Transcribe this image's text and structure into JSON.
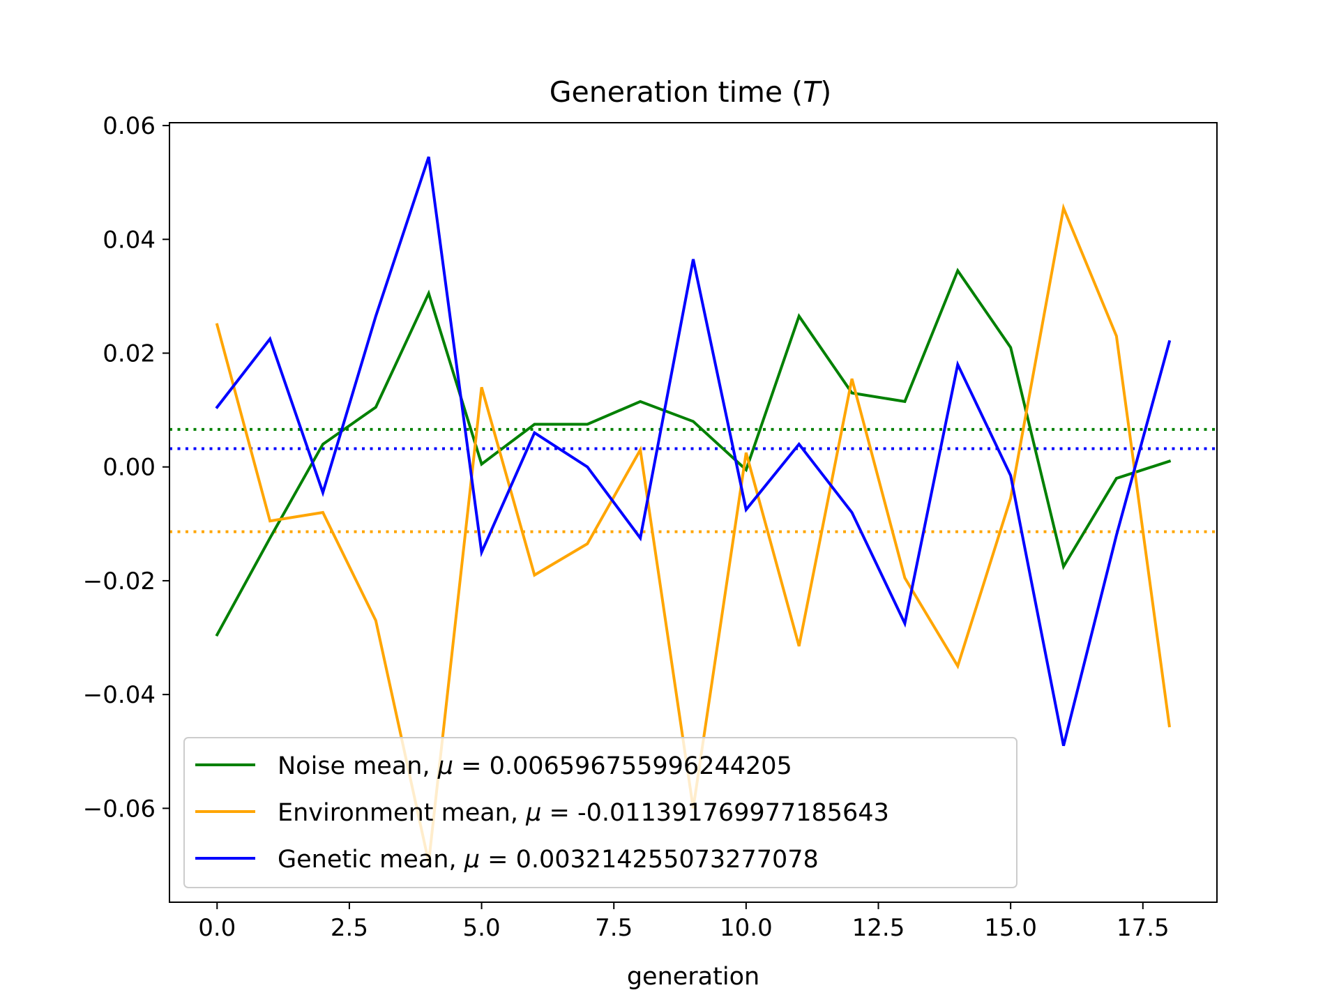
{
  "chart_data": {
    "type": "line",
    "title_prefix": "Generation time (",
    "title_symbol": "T",
    "title_suffix": ")",
    "xlabel": "generation",
    "ylabel": "",
    "xlim": [
      -0.9,
      18.9
    ],
    "ylim": [
      -0.0765,
      0.0605
    ],
    "x_ticks": [
      0.0,
      2.5,
      5.0,
      7.5,
      10.0,
      12.5,
      15.0,
      17.5
    ],
    "x_tick_labels": [
      "0.0",
      "2.5",
      "5.0",
      "7.5",
      "10.0",
      "12.5",
      "15.0",
      "17.5"
    ],
    "y_ticks": [
      0.06,
      0.04,
      0.02,
      0.0,
      -0.02,
      -0.04,
      -0.06
    ],
    "y_tick_labels": [
      "0.06",
      "0.04",
      "0.02",
      "0.00",
      "−0.02",
      "−0.04",
      "−0.06"
    ],
    "grid": false,
    "legend_position": "lower-left",
    "x": [
      0,
      1,
      2,
      3,
      4,
      5,
      6,
      7,
      8,
      9,
      10,
      11,
      12,
      13,
      14,
      15,
      16,
      17,
      18
    ],
    "series": [
      {
        "name_prefix": "Noise mean, ",
        "name_value": "0.006596755996244205",
        "color": "#008000",
        "mean": 0.006596755996244205,
        "values": [
          -0.0295,
          -0.0125,
          0.004,
          0.0105,
          0.0305,
          0.0005,
          0.0075,
          0.0075,
          0.0115,
          0.008,
          -0.0005,
          0.0265,
          0.013,
          0.0115,
          0.0345,
          0.021,
          -0.0175,
          -0.002,
          0.001
        ]
      },
      {
        "name_prefix": "Environment mean, ",
        "name_value": "-0.011391769977185643",
        "color": "#ffa500",
        "mean": -0.011391769977185643,
        "values": [
          0.025,
          -0.0095,
          -0.008,
          -0.027,
          -0.0695,
          0.014,
          -0.019,
          -0.0135,
          0.003,
          -0.06,
          0.0025,
          -0.0315,
          0.0155,
          -0.0195,
          -0.035,
          -0.0055,
          0.0455,
          0.023,
          -0.0455
        ]
      },
      {
        "name_prefix": "Genetic mean, ",
        "name_value": "0.003214255073277078",
        "color": "#0000ff",
        "mean": 0.003214255073277078,
        "values": [
          0.0105,
          0.0225,
          -0.0045,
          0.0265,
          0.0545,
          -0.015,
          0.006,
          0.0,
          -0.0125,
          0.0365,
          -0.0075,
          0.004,
          -0.008,
          -0.0275,
          0.018,
          -0.0015,
          -0.049,
          -0.012,
          0.022
        ]
      }
    ]
  }
}
